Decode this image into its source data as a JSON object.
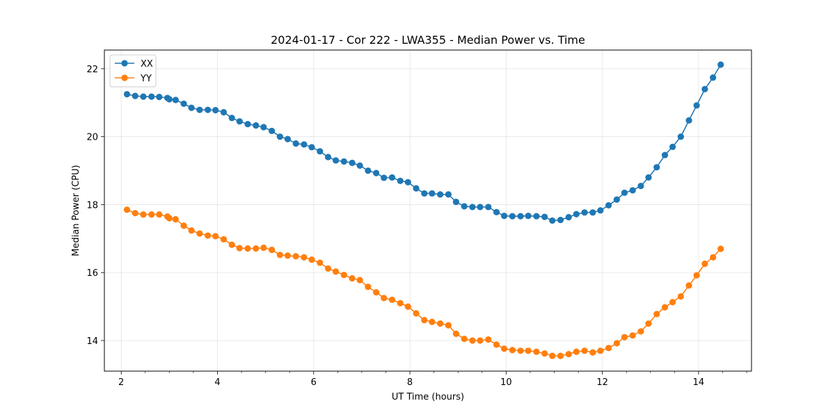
{
  "chart_data": {
    "type": "line",
    "title": "2024-01-17 - Cor 222 - LWA355 - Median Power vs. Time",
    "xlabel": "UT Time (hours)",
    "ylabel": "Median Power (CPU)",
    "xlim": [
      1.65,
      15.1
    ],
    "ylim": [
      13.1,
      22.55
    ],
    "xticks": [
      2,
      4,
      6,
      8,
      10,
      12,
      14
    ],
    "xtick_labels": [
      "2",
      "4",
      "6",
      "8",
      "10",
      "12",
      "14"
    ],
    "yticks": [
      14,
      16,
      18,
      20,
      22
    ],
    "ytick_labels": [
      "14",
      "16",
      "18",
      "20",
      "22"
    ],
    "grid": true,
    "legend_position": "top-left",
    "x": [
      2.12,
      2.29,
      2.46,
      2.63,
      2.79,
      2.96,
      3.0,
      3.13,
      3.3,
      3.46,
      3.63,
      3.8,
      3.96,
      4.13,
      4.3,
      4.46,
      4.63,
      4.8,
      4.96,
      5.13,
      5.3,
      5.46,
      5.63,
      5.8,
      5.96,
      6.13,
      6.3,
      6.46,
      6.63,
      6.8,
      6.96,
      7.13,
      7.3,
      7.46,
      7.63,
      7.8,
      7.96,
      8.13,
      8.3,
      8.46,
      8.63,
      8.8,
      8.96,
      9.13,
      9.3,
      9.46,
      9.63,
      9.8,
      9.96,
      10.13,
      10.3,
      10.46,
      10.63,
      10.8,
      10.96,
      11.13,
      11.3,
      11.46,
      11.63,
      11.8,
      11.96,
      12.13,
      12.3,
      12.46,
      12.63,
      12.8,
      12.96,
      13.13,
      13.3,
      13.46,
      13.63,
      13.8,
      13.96,
      14.13,
      14.3,
      14.46
    ],
    "series": [
      {
        "name": "XX",
        "color": "#1f77b4",
        "values": [
          21.25,
          21.2,
          21.18,
          21.18,
          21.17,
          21.14,
          21.1,
          21.08,
          20.97,
          20.85,
          20.79,
          20.79,
          20.78,
          20.72,
          20.55,
          20.45,
          20.37,
          20.33,
          20.28,
          20.17,
          20.0,
          19.93,
          19.8,
          19.77,
          19.69,
          19.57,
          19.4,
          19.3,
          19.27,
          19.23,
          19.15,
          19.0,
          18.93,
          18.79,
          18.8,
          18.7,
          18.66,
          18.48,
          18.33,
          18.33,
          18.3,
          18.3,
          18.08,
          17.95,
          17.93,
          17.93,
          17.93,
          17.78,
          17.67,
          17.66,
          17.66,
          17.67,
          17.66,
          17.64,
          17.53,
          17.55,
          17.63,
          17.72,
          17.77,
          17.77,
          17.83,
          17.98,
          18.15,
          18.35,
          18.42,
          18.55,
          18.8,
          19.1,
          19.46,
          19.7,
          20.0,
          20.48,
          20.92,
          21.4,
          21.74,
          22.12
        ]
      },
      {
        "name": "YY",
        "color": "#ff7f0e",
        "values": [
          17.85,
          17.75,
          17.71,
          17.71,
          17.71,
          17.65,
          17.6,
          17.57,
          17.38,
          17.24,
          17.15,
          17.09,
          17.07,
          16.98,
          16.82,
          16.72,
          16.71,
          16.71,
          16.73,
          16.67,
          16.52,
          16.5,
          16.48,
          16.45,
          16.38,
          16.29,
          16.12,
          16.03,
          15.93,
          15.83,
          15.78,
          15.58,
          15.42,
          15.25,
          15.2,
          15.1,
          15.0,
          14.8,
          14.6,
          14.55,
          14.5,
          14.45,
          14.2,
          14.05,
          14.0,
          14.0,
          14.03,
          13.88,
          13.76,
          13.72,
          13.7,
          13.7,
          13.67,
          13.62,
          13.55,
          13.55,
          13.6,
          13.67,
          13.7,
          13.65,
          13.7,
          13.78,
          13.92,
          14.1,
          14.15,
          14.27,
          14.5,
          14.78,
          14.98,
          15.13,
          15.3,
          15.62,
          15.92,
          16.26,
          16.45,
          16.7
        ]
      }
    ]
  }
}
